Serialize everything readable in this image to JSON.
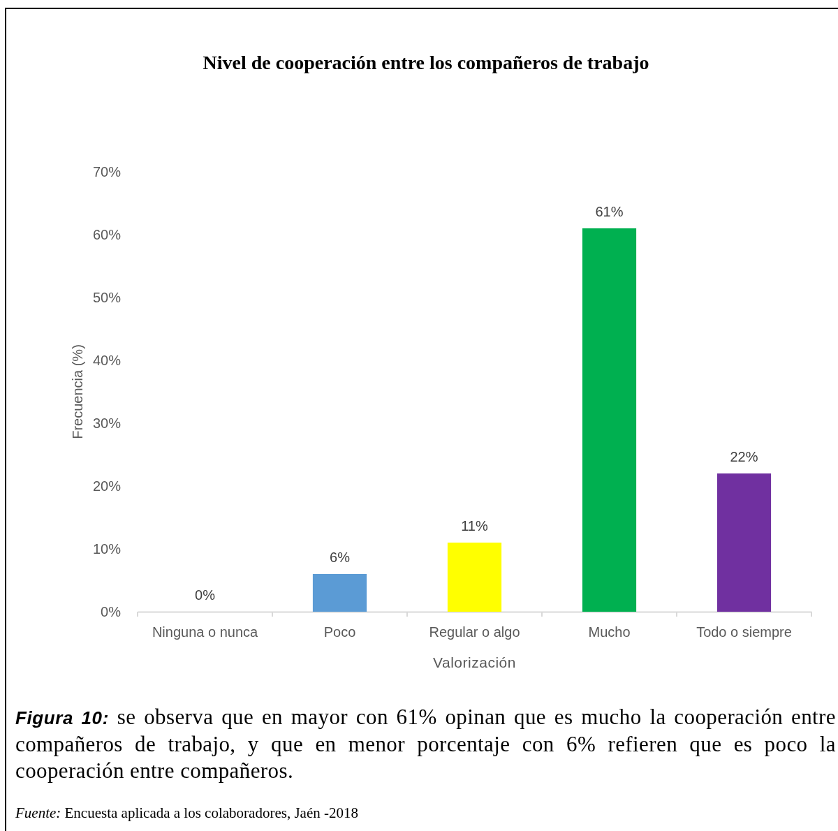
{
  "chart_data": {
    "type": "bar",
    "title": "Nivel de cooperación entre los compañeros de trabajo",
    "xlabel": "Valorización",
    "ylabel": "Frecuencia (%)",
    "categories": [
      "Ninguna o nunca",
      "Poco",
      "Regular o algo",
      "Mucho",
      "Todo o siempre"
    ],
    "values": [
      0,
      6,
      11,
      61,
      22
    ],
    "colors": [
      "#5b9bd5",
      "#5b9bd5",
      "#ffff00",
      "#00b050",
      "#7030a0"
    ],
    "value_labels": [
      "0%",
      "6%",
      "11%",
      "61%",
      "22%"
    ],
    "ylim": [
      0,
      70
    ],
    "yticks": [
      {
        "value": 0,
        "label": "0%"
      },
      {
        "value": 10,
        "label": "10%"
      },
      {
        "value": 20,
        "label": "20%"
      },
      {
        "value": 30,
        "label": "30%"
      },
      {
        "value": 40,
        "label": "40%"
      },
      {
        "value": 50,
        "label": "50%"
      },
      {
        "value": 60,
        "label": "60%"
      },
      {
        "value": 70,
        "label": "70%"
      }
    ],
    "annotations": [
      "Figura 10: se observa que en mayor con 61% opinan que es mucho la cooperación entre compañeros de trabajo, y que en menor porcentaje con 6% refieren que es poco la cooperación entre compañeros.",
      "Fuente: Encuesta aplicada a los colaboradores, Jaén -2018"
    ]
  }
}
